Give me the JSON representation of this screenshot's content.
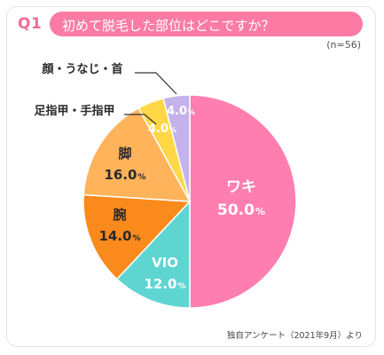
{
  "header": {
    "qnum": "Q1",
    "question": "初めて脱毛した部位はどこですか？",
    "n": "(n=56)"
  },
  "source": "独自アンケート（2021年9月）より",
  "chart_data": {
    "type": "pie",
    "title": "",
    "slices": [
      {
        "label": "ワキ",
        "value": 50.0,
        "display": "50.0",
        "color": "#ff7eb0",
        "text_color": "#ffffff"
      },
      {
        "label": "VIO",
        "value": 12.0,
        "display": "12.0",
        "color": "#5fd5d2",
        "text_color": "#ffffff"
      },
      {
        "label": "腕",
        "value": 14.0,
        "display": "14.0",
        "color": "#fb8a1c",
        "text_color": "#2a2a2a"
      },
      {
        "label": "脚",
        "value": 16.0,
        "display": "16.0",
        "color": "#ffb35a",
        "text_color": "#2a2a2a"
      },
      {
        "label": "足指甲・手指甲",
        "value": 4.0,
        "display": "4.0",
        "color": "#ffd747",
        "text_color": "#ffffff"
      },
      {
        "label": "顔・うなじ・首",
        "value": 4.0,
        "display": "4.0",
        "color": "#c4b2ea",
        "text_color": "#ffffff"
      }
    ],
    "unit": "%",
    "start": "12 o'clock",
    "direction": "clockwise"
  }
}
